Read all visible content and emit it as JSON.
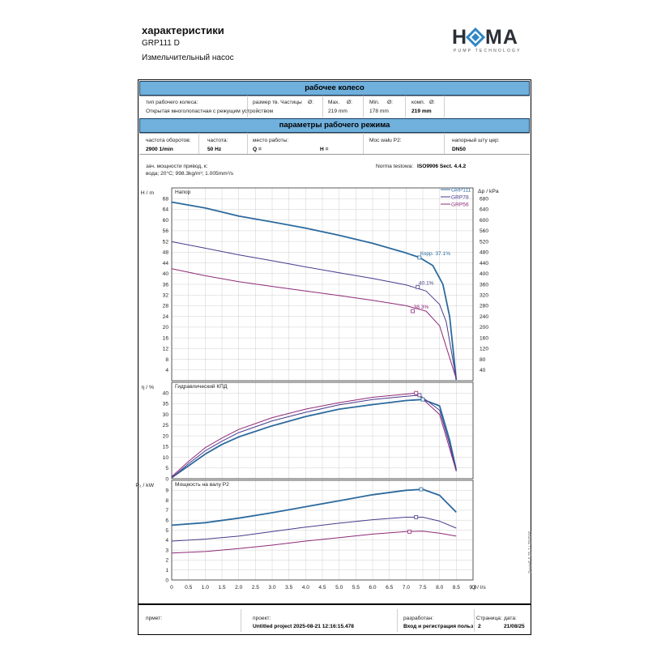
{
  "header": {
    "title": "характеристики",
    "model": "GRP111 D",
    "subtitle": "Измельчительный насос",
    "logo_text": "HOMA",
    "logo_tagline": "PUMP TECHNOLOGY",
    "colors": {
      "logo_dark": "#2b2f36",
      "logo_accent": "#2f86c5"
    }
  },
  "impeller": {
    "band_title": "рабочее колесо",
    "type_label": "тип рабочего колеса:",
    "type_value": "Открытая многолопастная с режущим устройством",
    "size_label": "размер тв. Частицы",
    "max_label": "Max.",
    "max_value": "219 mm",
    "min_label": "Min.",
    "min_value": "178 mm",
    "comp_label": "комп.",
    "comp_value": "219 mm",
    "dia_symbol": "Ø:"
  },
  "operating": {
    "band_title": "параметры рабочего режима",
    "speed_label": "частота оборотов:",
    "speed_value": "2900 1/min",
    "freq_label": "частота:",
    "freq_value": "50 Hz",
    "point_label": "место работы:",
    "q_label": "Q =",
    "h_label": "H =",
    "power_label": "Moc wału P2:",
    "outlet_label": "напорный шту цер:",
    "outlet_value": "DN50"
  },
  "notes": {
    "line1": "зач. мощности привод, к:",
    "line2": "вода; 20°C; 998.3kg/m³; 1.005mm²/s",
    "norma_label": "Norma testowa:",
    "norma_value": "ISO9906 Sect. 4.4.2"
  },
  "side_text": "Spaix® 6.25.1 / 250506",
  "footer": {
    "object_label": "прмет:",
    "project_label": "проект:",
    "project_value": "Untitled project 2025-08-21 12:16:15.478",
    "author_label": "разработан:",
    "author_value": "Вход и регистрация пользователя",
    "page_label": "Страница:",
    "date_label": "дата:",
    "page_value": "2",
    "date_value": "21/08/25"
  },
  "chart_data": {
    "type": "line",
    "colors": {
      "GRP111": "#2c6a9e",
      "GRP78": "#4a3a8c",
      "GRP56": "#8e2a78",
      "grid": "#cfcfcf",
      "axis": "#333333"
    },
    "legend": [
      "GRP111",
      "GRP78",
      "GRP56"
    ],
    "legend_placement": "top-right",
    "x": {
      "label": "Q / l/s",
      "range": [
        0,
        9
      ],
      "ticks": [
        "0",
        "0.5",
        "1.0",
        "1.5",
        "2.0",
        "2.5",
        "3.0",
        "3.5",
        "4.0",
        "4.5",
        "5.0",
        "5.5",
        "6.0",
        "6.5",
        "7.0",
        "7.5",
        "8.0",
        "8.5",
        "9.0"
      ]
    },
    "panels": [
      {
        "id": "head",
        "title": "Напор",
        "ylabel": "H / m",
        "ylim": [
          0,
          72
        ],
        "yticks": [
          4,
          8,
          12,
          16,
          20,
          24,
          28,
          32,
          36,
          40,
          44,
          48,
          52,
          56,
          60,
          64,
          68
        ],
        "y2label": "Δp / kPa",
        "y2ticks": [
          40,
          80,
          120,
          160,
          200,
          240,
          280,
          320,
          360,
          400,
          440,
          480,
          520,
          560,
          600,
          640,
          680
        ],
        "series": [
          {
            "name": "GRP111",
            "x": [
              0,
              1,
              2,
              3,
              4,
              5,
              6,
              7,
              7.4,
              7.8,
              8.1,
              8.3,
              8.5
            ],
            "y": [
              66.7,
              64.5,
              61.5,
              59.3,
              57,
              54.3,
              51.3,
              47.7,
              46,
              43,
              36,
              24,
              0.3
            ]
          },
          {
            "name": "GRP78",
            "x": [
              0,
              1,
              2,
              3,
              4,
              5,
              6,
              7,
              7.6,
              8.0,
              8.2,
              8.5
            ],
            "y": [
              51.9,
              49.5,
              47,
              44.8,
              42.5,
              40.3,
              38.2,
              35.8,
              33.5,
              28.5,
              22,
              0.5
            ]
          },
          {
            "name": "GRP56",
            "x": [
              0,
              1,
              2,
              3,
              4,
              5,
              6,
              7,
              7.6,
              8.0,
              8.5
            ],
            "y": [
              41.8,
              39.2,
              37,
              35.2,
              33.5,
              31.8,
              30,
              28,
              26,
              20.5,
              0.7
            ]
          }
        ],
        "annotations": [
          {
            "series": "GRP111",
            "text": "Корр.  37.1%",
            "x": 7.4,
            "y": 46
          },
          {
            "series": "GRP78",
            "text": "40.1%",
            "x": 7.35,
            "y": 35
          },
          {
            "series": "GRP56",
            "text": "38.3%",
            "x": 7.2,
            "y": 26
          }
        ]
      },
      {
        "id": "efficiency",
        "title": "Гидравлический КПД",
        "ylabel": "η / %",
        "ylim": [
          0,
          45
        ],
        "yticks": [
          0,
          5,
          10,
          15,
          20,
          25,
          30,
          35,
          40
        ],
        "series": [
          {
            "name": "GRP111",
            "x": [
              0,
              0.5,
              1,
              1.5,
              2,
              3,
              4,
              5,
              6,
              7,
              7.5,
              8,
              8.3,
              8.5
            ],
            "y": [
              0.5,
              6,
              11.5,
              16,
              19.5,
              24.7,
              29,
              32.5,
              34.6,
              36.5,
              37,
              34,
              18,
              4
            ]
          },
          {
            "name": "GRP78",
            "x": [
              0,
              0.5,
              1,
              1.5,
              2,
              3,
              4,
              5,
              6,
              7,
              7.4,
              8,
              8.3,
              8.5
            ],
            "y": [
              0.5,
              7,
              13,
              17.5,
              21.5,
              27,
              31,
              34.5,
              37,
              38.5,
              39,
              32,
              16,
              3.5
            ]
          },
          {
            "name": "GRP56",
            "x": [
              0,
              0.5,
              1,
              1.5,
              2,
              3,
              4,
              5,
              6,
              7,
              7.3,
              8,
              8.3,
              8.5
            ],
            "y": [
              1,
              8,
              14.5,
              19,
              23,
              28.5,
              32.5,
              35.5,
              38,
              39.5,
              40,
              30,
              14,
              3.5
            ]
          }
        ]
      },
      {
        "id": "power",
        "title": "Мощность на валу P2",
        "ylabel": "P₂ / kW",
        "ylim": [
          0,
          10
        ],
        "yticks": [
          0,
          1,
          2,
          3,
          4,
          5,
          6,
          7,
          8,
          9
        ],
        "series": [
          {
            "name": "GRP111",
            "x": [
              0,
              1,
              2,
              3,
              4,
              5,
              6,
              7,
              7.5,
              8,
              8.5
            ],
            "y": [
              5.5,
              5.75,
              6.2,
              6.75,
              7.35,
              7.95,
              8.55,
              9.0,
              9.1,
              8.5,
              6.8
            ]
          },
          {
            "name": "GRP78",
            "x": [
              0,
              1,
              2,
              3,
              4,
              5,
              6,
              7,
              7.5,
              8,
              8.5
            ],
            "y": [
              3.9,
              4.1,
              4.4,
              4.85,
              5.3,
              5.7,
              6.05,
              6.3,
              6.3,
              5.9,
              5.2
            ]
          },
          {
            "name": "GRP56",
            "x": [
              0,
              1,
              2,
              3,
              4,
              5,
              6,
              7,
              7.5,
              8,
              8.5
            ],
            "y": [
              2.7,
              2.85,
              3.15,
              3.5,
              3.9,
              4.25,
              4.6,
              4.85,
              4.9,
              4.7,
              4.4
            ]
          }
        ],
        "markers": [
          {
            "series": "GRP111",
            "x": 7.45,
            "y": 9.1
          },
          {
            "series": "GRP78",
            "x": 7.3,
            "y": 6.3
          },
          {
            "series": "GRP56",
            "x": 7.1,
            "y": 4.85
          }
        ]
      }
    ]
  }
}
